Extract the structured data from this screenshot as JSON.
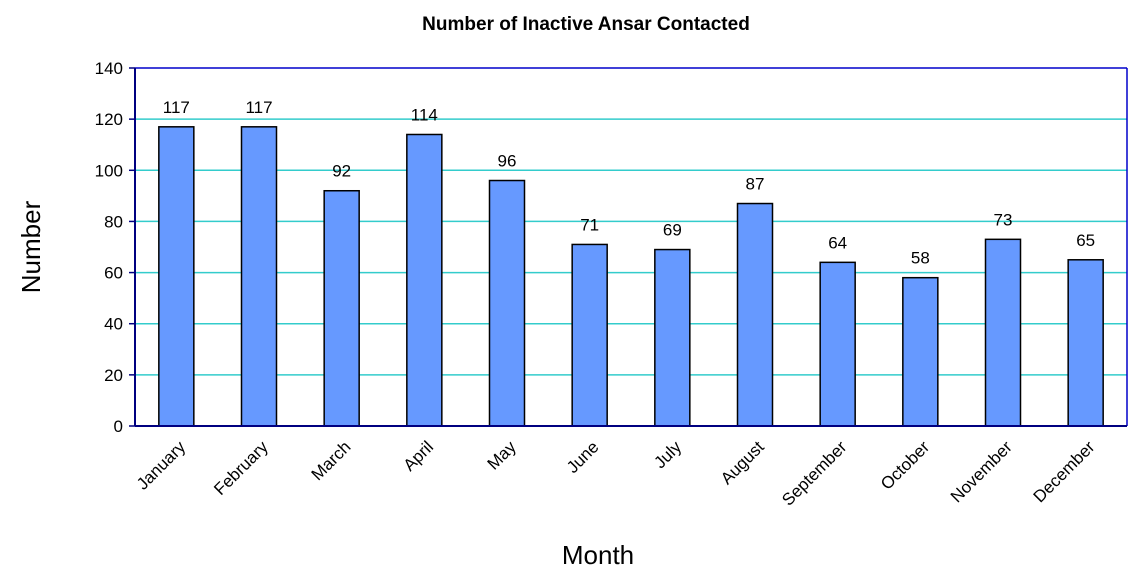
{
  "chart_data": {
    "type": "bar",
    "title": "Number of Inactive Ansar Contacted",
    "x_label": "Month",
    "y_label": "Number",
    "categories": [
      "January",
      "February",
      "March",
      "April",
      "May",
      "June",
      "July",
      "August",
      "September",
      "October",
      "November",
      "December"
    ],
    "values": [
      117,
      117,
      92,
      114,
      96,
      71,
      69,
      87,
      64,
      58,
      73,
      65
    ],
    "color": "#6699ff",
    "ylim": [
      0,
      140
    ],
    "yticks": [
      0,
      20,
      40,
      60,
      80,
      100,
      120,
      140
    ],
    "grid": true
  }
}
